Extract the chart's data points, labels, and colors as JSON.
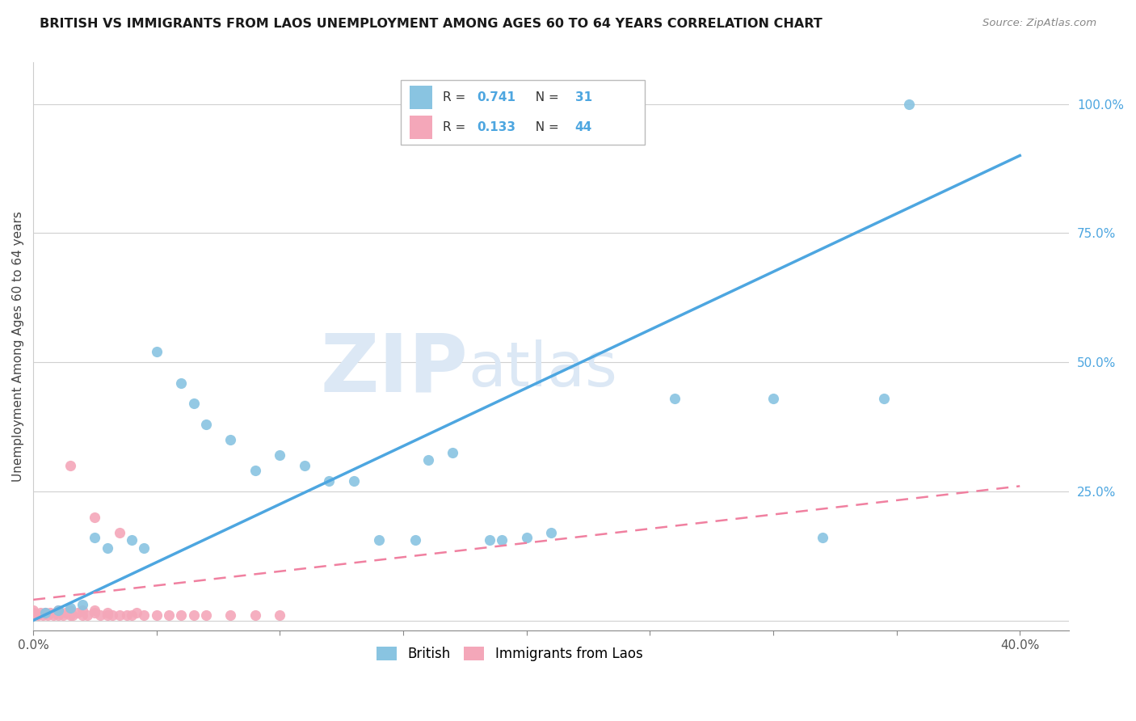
{
  "title": "BRITISH VS IMMIGRANTS FROM LAOS UNEMPLOYMENT AMONG AGES 60 TO 64 YEARS CORRELATION CHART",
  "source": "Source: ZipAtlas.com",
  "ylabel": "Unemployment Among Ages 60 to 64 years",
  "british_R": 0.741,
  "british_N": 31,
  "laos_R": 0.133,
  "laos_N": 44,
  "xlim": [
    0.0,
    0.42
  ],
  "ylim": [
    -0.02,
    1.08
  ],
  "xticks": [
    0.0,
    0.05,
    0.1,
    0.15,
    0.2,
    0.25,
    0.3,
    0.35,
    0.4
  ],
  "yticks": [
    0.0,
    0.25,
    0.5,
    0.75,
    1.0
  ],
  "ytick_labels": [
    "",
    "25.0%",
    "50.0%",
    "75.0%",
    "100.0%"
  ],
  "xtick_labels_show": [
    "0.0%",
    "40.0%"
  ],
  "british_color": "#89c4e1",
  "laos_color": "#f4a7b9",
  "british_line_color": "#4da6e0",
  "laos_line_color": "#f080a0",
  "grid_color": "#d0d0d0",
  "watermark_zip": "ZIP",
  "watermark_atlas": "atlas",
  "watermark_color": "#dce8f5",
  "british_x": [
    0.005,
    0.01,
    0.015,
    0.02,
    0.025,
    0.03,
    0.04,
    0.045,
    0.05,
    0.06,
    0.065,
    0.07,
    0.08,
    0.09,
    0.1,
    0.11,
    0.12,
    0.13,
    0.14,
    0.155,
    0.16,
    0.17,
    0.185,
    0.19,
    0.2,
    0.21,
    0.26,
    0.3,
    0.32,
    0.345,
    0.355
  ],
  "british_y": [
    0.015,
    0.02,
    0.025,
    0.03,
    0.16,
    0.14,
    0.155,
    0.14,
    0.52,
    0.46,
    0.42,
    0.38,
    0.35,
    0.29,
    0.32,
    0.3,
    0.27,
    0.27,
    0.155,
    0.155,
    0.31,
    0.325,
    0.155,
    0.155,
    0.16,
    0.17,
    0.43,
    0.43,
    0.16,
    0.43,
    1.0
  ],
  "laos_x": [
    0.0,
    0.0,
    0.0,
    0.002,
    0.003,
    0.004,
    0.005,
    0.006,
    0.007,
    0.008,
    0.009,
    0.01,
    0.01,
    0.012,
    0.013,
    0.015,
    0.015,
    0.016,
    0.018,
    0.02,
    0.02,
    0.022,
    0.025,
    0.025,
    0.027,
    0.03,
    0.03,
    0.032,
    0.035,
    0.038,
    0.04,
    0.042,
    0.045,
    0.05,
    0.055,
    0.06,
    0.065,
    0.07,
    0.08,
    0.09,
    0.1,
    0.015,
    0.025,
    0.035
  ],
  "laos_y": [
    0.01,
    0.015,
    0.02,
    0.01,
    0.015,
    0.01,
    0.015,
    0.01,
    0.015,
    0.01,
    0.015,
    0.01,
    0.02,
    0.01,
    0.015,
    0.01,
    0.02,
    0.01,
    0.015,
    0.01,
    0.02,
    0.01,
    0.015,
    0.02,
    0.01,
    0.01,
    0.015,
    0.01,
    0.01,
    0.01,
    0.01,
    0.015,
    0.01,
    0.01,
    0.01,
    0.01,
    0.01,
    0.01,
    0.01,
    0.01,
    0.01,
    0.3,
    0.2,
    0.17
  ],
  "blue_line_x0": 0.0,
  "blue_line_y0": 0.0,
  "blue_line_x1": 0.4,
  "blue_line_y1": 0.9,
  "pink_line_x0": 0.0,
  "pink_line_y0": 0.04,
  "pink_line_x1": 0.4,
  "pink_line_y1": 0.26
}
